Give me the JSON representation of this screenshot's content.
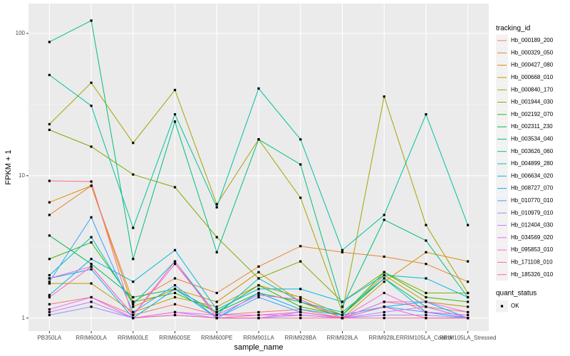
{
  "chart_data": {
    "type": "line",
    "x_label": "sample_name",
    "y_label": "FPKM + 1",
    "categories": [
      "PB350LA",
      "RRIM600LA",
      "RRIM600LE",
      "RRIM600SE",
      "RRIM600PE",
      "RRIM901LA",
      "RRIM928BA",
      "RRIM928LA",
      "RRIM928LE",
      "RRIM105LA_Control",
      "RRIM105LA_Stressed"
    ],
    "log_y": true,
    "grid": true,
    "ylim": [
      0.81,
      162
    ],
    "yticks": [
      1,
      10,
      100
    ],
    "legend_title": "tracking_id",
    "point_legend": {
      "title": "quant_status",
      "labels": [
        "OK"
      ],
      "color": "#000000"
    },
    "series": [
      {
        "name": "Hb_000189_200",
        "color": "#F8766D",
        "values": [
          1.25,
          1.4,
          1.05,
          1.25,
          1.05,
          1.1,
          1.15,
          1.0,
          1.3,
          1.2,
          1.1
        ]
      },
      {
        "name": "Hb_000329_050",
        "color": "#EA8331",
        "values": [
          5.3,
          8.5,
          1.3,
          1.9,
          1.5,
          2.3,
          3.2,
          2.9,
          2.7,
          2.4,
          1.8
        ]
      },
      {
        "name": "Hb_000427_080",
        "color": "#D89000",
        "values": [
          6.5,
          8.5,
          1.2,
          1.6,
          1.3,
          2.1,
          1.3,
          1.0,
          1.8,
          2.9,
          2.5
        ]
      },
      {
        "name": "Hb_000668_010",
        "color": "#C09B00",
        "values": [
          1.75,
          1.75,
          1.1,
          1.4,
          1.2,
          1.7,
          1.4,
          1.05,
          2.0,
          1.3,
          1.2
        ]
      },
      {
        "name": "Hb_000840_170",
        "color": "#A3A500",
        "values": [
          23,
          45,
          17,
          40,
          6.3,
          18,
          7,
          1.1,
          36,
          4.5,
          1.5
        ]
      },
      {
        "name": "Hb_001944_030",
        "color": "#7CAE00",
        "values": [
          21,
          16,
          10.2,
          8.3,
          3.7,
          1.9,
          2.5,
          1.3,
          2.1,
          1.5,
          1.5
        ]
      },
      {
        "name": "Hb_002192_070",
        "color": "#39B600",
        "values": [
          2.6,
          3.4,
          1.3,
          1.5,
          1.1,
          1.7,
          1.2,
          1.05,
          2.1,
          1.4,
          1.3
        ]
      },
      {
        "name": "Hb_002311_230",
        "color": "#00BB4E",
        "values": [
          3.8,
          2.4,
          1.4,
          1.6,
          1.1,
          1.5,
          1.3,
          1.05,
          1.9,
          1.2,
          1.0
        ]
      },
      {
        "name": "Hb_003534_040",
        "color": "#00BF7D",
        "values": [
          87,
          123,
          2.6,
          24,
          2.9,
          18,
          12,
          1.2,
          4.9,
          3.5,
          1.4
        ]
      },
      {
        "name": "Hb_003626_060",
        "color": "#00C1A3",
        "values": [
          51,
          31,
          4.3,
          27,
          6,
          41,
          18,
          3,
          5.3,
          27,
          4.5
        ]
      },
      {
        "name": "Hb_004899_280",
        "color": "#00BFC4",
        "values": [
          2.0,
          3.7,
          1.25,
          2.5,
          1.05,
          1.9,
          1.3,
          1.1,
          1.9,
          1.1,
          1.0
        ]
      },
      {
        "name": "Hb_006634_020",
        "color": "#00BAE0",
        "values": [
          1.45,
          2.6,
          1.8,
          3.0,
          1.15,
          1.6,
          1.6,
          1.3,
          2.0,
          1.9,
          1.4
        ]
      },
      {
        "name": "Hb_008727_070",
        "color": "#00B0F6",
        "values": [
          1.9,
          2.2,
          1.0,
          1.6,
          1.0,
          1.5,
          1.15,
          1.05,
          1.2,
          1.3,
          1.0
        ]
      },
      {
        "name": "Hb_010770_010",
        "color": "#35A2FF",
        "values": [
          1.8,
          5.1,
          1.1,
          1.7,
          1.0,
          1.4,
          1.1,
          1.0,
          1.2,
          1.1,
          1.0
        ]
      },
      {
        "name": "Hb_010979_010",
        "color": "#9590FF",
        "values": [
          1.05,
          1.2,
          1.0,
          1.05,
          1.0,
          1.0,
          1.05,
          1.0,
          1.05,
          1.05,
          1.0
        ]
      },
      {
        "name": "Hb_012404_030",
        "color": "#C77CFF",
        "values": [
          1.1,
          1.3,
          1.0,
          1.1,
          1.0,
          1.0,
          1.1,
          1.0,
          1.1,
          1.2,
          1.0
        ]
      },
      {
        "name": "Hb_034569_020",
        "color": "#E76BF3",
        "values": [
          1.15,
          1.4,
          1.0,
          1.1,
          1.05,
          1.05,
          1.05,
          1.0,
          1.3,
          1.3,
          1.1
        ]
      },
      {
        "name": "Hb_095853_010",
        "color": "#FA62DB",
        "values": [
          1.9,
          2.3,
          1.05,
          2.4,
          1.05,
          1.45,
          1.35,
          1.0,
          1.5,
          1.1,
          1.05
        ]
      },
      {
        "name": "Hb_171108_010",
        "color": "#FF62BC",
        "values": [
          1.4,
          2.3,
          1.05,
          2.5,
          1.0,
          1.05,
          1.1,
          1.0,
          1.2,
          1.0,
          1.0
        ]
      },
      {
        "name": "Hb_185326_010",
        "color": "#FF6C91",
        "values": [
          9.2,
          9.1,
          1.0,
          1.05,
          1.0,
          1.0,
          1.0,
          1.0,
          1.0,
          1.0,
          1.0
        ]
      }
    ]
  }
}
